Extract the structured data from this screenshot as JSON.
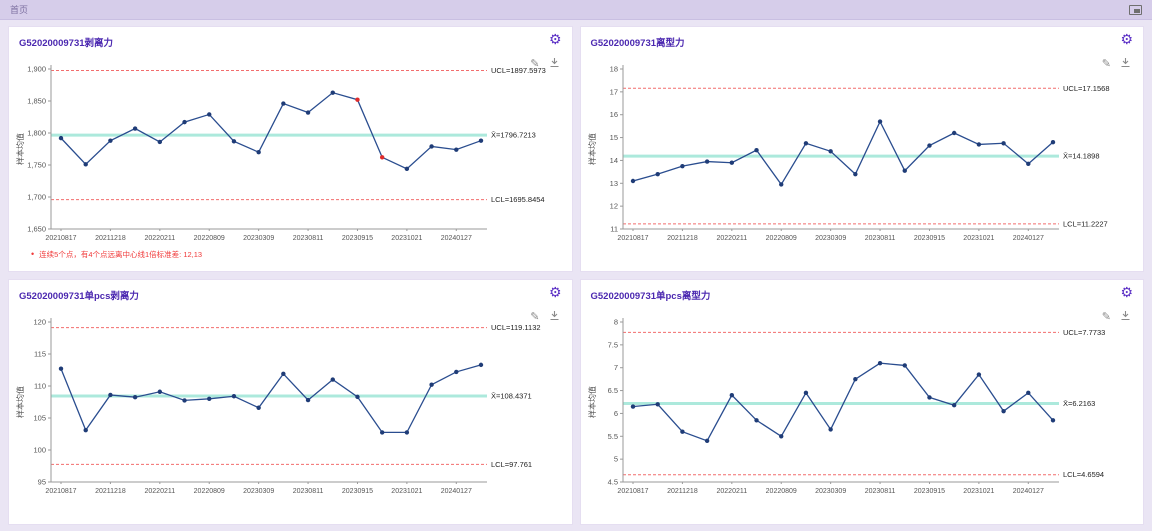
{
  "header": {
    "title": "首页"
  },
  "icons": {
    "gear_glyph": "⚙",
    "pencil_glyph": "✎"
  },
  "colors": {
    "accent_purple": "#4b28b0",
    "series_line": "#2a4d8f",
    "point_fill": "#1f3c77",
    "alert_point": "#e02b2b",
    "limit_line": "#f26d6d",
    "center_line": "#ace9dc",
    "axis": "#9a9a9a",
    "tick_text": "#555555",
    "limit_text": "#222222"
  },
  "panels": [
    {
      "title": "G52020009731剥离力",
      "annotation": "连续5个点，有4个点远离中心线1倍标准差: 12,13"
    },
    {
      "title": "G52020009731离型力",
      "annotation": ""
    },
    {
      "title": "G52020009731单pcs剥离力",
      "annotation": ""
    },
    {
      "title": "G52020009731单pcs离型力",
      "annotation": ""
    }
  ],
  "chart_data": [
    {
      "type": "line",
      "title": "G52020009731剥离力",
      "ylabel": "样本均值",
      "xticks": [
        "20210817",
        "20211218",
        "20220211",
        "20220809",
        "20230309",
        "20230811",
        "20230915",
        "20231021",
        "20240127"
      ],
      "xtick_indices": [
        0,
        2,
        4,
        6,
        8,
        10,
        12,
        14,
        16
      ],
      "values": [
        1792,
        1751,
        1788,
        1807,
        1786,
        1817,
        1829,
        1787,
        1770,
        1846,
        1832,
        1863,
        1852,
        1762,
        1744,
        1779,
        1774,
        1788
      ],
      "red_points": [
        12,
        13
      ],
      "ucl": 1897.5973,
      "cl": 1796.7213,
      "lcl": 1695.8454,
      "ucl_label": "UCL=1897.5973",
      "cl_label": "X̄=1796.7213",
      "lcl_label": "LCL=1695.8454",
      "ylim": [
        1650,
        1900
      ],
      "yticks": [
        1900,
        1850,
        1800,
        1750,
        1700,
        1650
      ],
      "ytick_labels": [
        "1,900",
        "1,850",
        "1,800",
        "1,750",
        "1,700",
        "1,650"
      ],
      "legend": "none",
      "grid": "off"
    },
    {
      "type": "line",
      "title": "G52020009731离型力",
      "ylabel": "样本均值",
      "xticks": [
        "20210817",
        "20211218",
        "20220211",
        "20220809",
        "20230309",
        "20230811",
        "20230915",
        "20231021",
        "20240127"
      ],
      "xtick_indices": [
        0,
        2,
        4,
        6,
        8,
        10,
        12,
        14,
        16
      ],
      "values": [
        13.1,
        13.4,
        13.75,
        13.95,
        13.9,
        14.45,
        12.95,
        14.75,
        14.4,
        13.4,
        15.7,
        13.55,
        14.65,
        15.2,
        14.7,
        14.75,
        13.85,
        14.8
      ],
      "red_points": [],
      "ucl": 17.1568,
      "cl": 14.1898,
      "lcl": 11.2227,
      "ucl_label": "UCL=17.1568",
      "cl_label": "X̄=14.1898",
      "lcl_label": "LCL=11.2227",
      "ylim": [
        11,
        18
      ],
      "yticks": [
        18,
        17,
        16,
        15,
        14,
        13,
        12,
        11
      ],
      "ytick_labels": [
        "18",
        "17",
        "16",
        "15",
        "14",
        "13",
        "12",
        "11"
      ],
      "legend": "none",
      "grid": "off"
    },
    {
      "type": "line",
      "title": "G52020009731单pcs剥离力",
      "ylabel": "样本均值",
      "xticks": [
        "20210817",
        "20211218",
        "20220211",
        "20220809",
        "20230309",
        "20230811",
        "20230915",
        "20231021",
        "20240127"
      ],
      "xtick_indices": [
        0,
        2,
        4,
        6,
        8,
        10,
        12,
        14,
        16
      ],
      "values": [
        112.7,
        103.1,
        108.6,
        108.25,
        109.1,
        107.75,
        108,
        108.4,
        106.6,
        111.9,
        107.8,
        111,
        108.3,
        102.75,
        102.75,
        110.2,
        112.2,
        113.3
      ],
      "red_points": [],
      "ucl": 119.1132,
      "cl": 108.4371,
      "lcl": 97.761,
      "ucl_label": "UCL=119.1132",
      "cl_label": "X̄=108.4371",
      "lcl_label": "LCL=97.761",
      "ylim": [
        95,
        120
      ],
      "yticks": [
        120,
        115,
        110,
        105,
        100,
        95
      ],
      "ytick_labels": [
        "120",
        "115",
        "110",
        "105",
        "100",
        "95"
      ],
      "legend": "none",
      "grid": "off"
    },
    {
      "type": "line",
      "title": "G52020009731单pcs离型力",
      "ylabel": "样本均值",
      "xticks": [
        "20210817",
        "20211218",
        "20220211",
        "20220809",
        "20230309",
        "20230811",
        "20230915",
        "20231021",
        "20240127"
      ],
      "xtick_indices": [
        0,
        2,
        4,
        6,
        8,
        10,
        12,
        14,
        16
      ],
      "values": [
        6.15,
        6.2,
        5.6,
        5.4,
        6.4,
        5.85,
        5.5,
        6.45,
        5.65,
        6.75,
        7.1,
        7.05,
        6.35,
        6.18,
        6.85,
        6.05,
        6.45,
        5.85
      ],
      "red_points": [],
      "ucl": 7.7733,
      "cl": 6.2163,
      "lcl": 4.6594,
      "ucl_label": "UCL=7.7733",
      "cl_label": "X̄=6.2163",
      "lcl_label": "LCL=4.6594",
      "ylim": [
        4.5,
        8
      ],
      "yticks": [
        8,
        7.5,
        7,
        6.5,
        6,
        5.5,
        5,
        4.5
      ],
      "ytick_labels": [
        "8",
        "7.5",
        "7",
        "6.5",
        "6",
        "5.5",
        "5",
        "4.5"
      ],
      "legend": "none",
      "grid": "off"
    }
  ]
}
